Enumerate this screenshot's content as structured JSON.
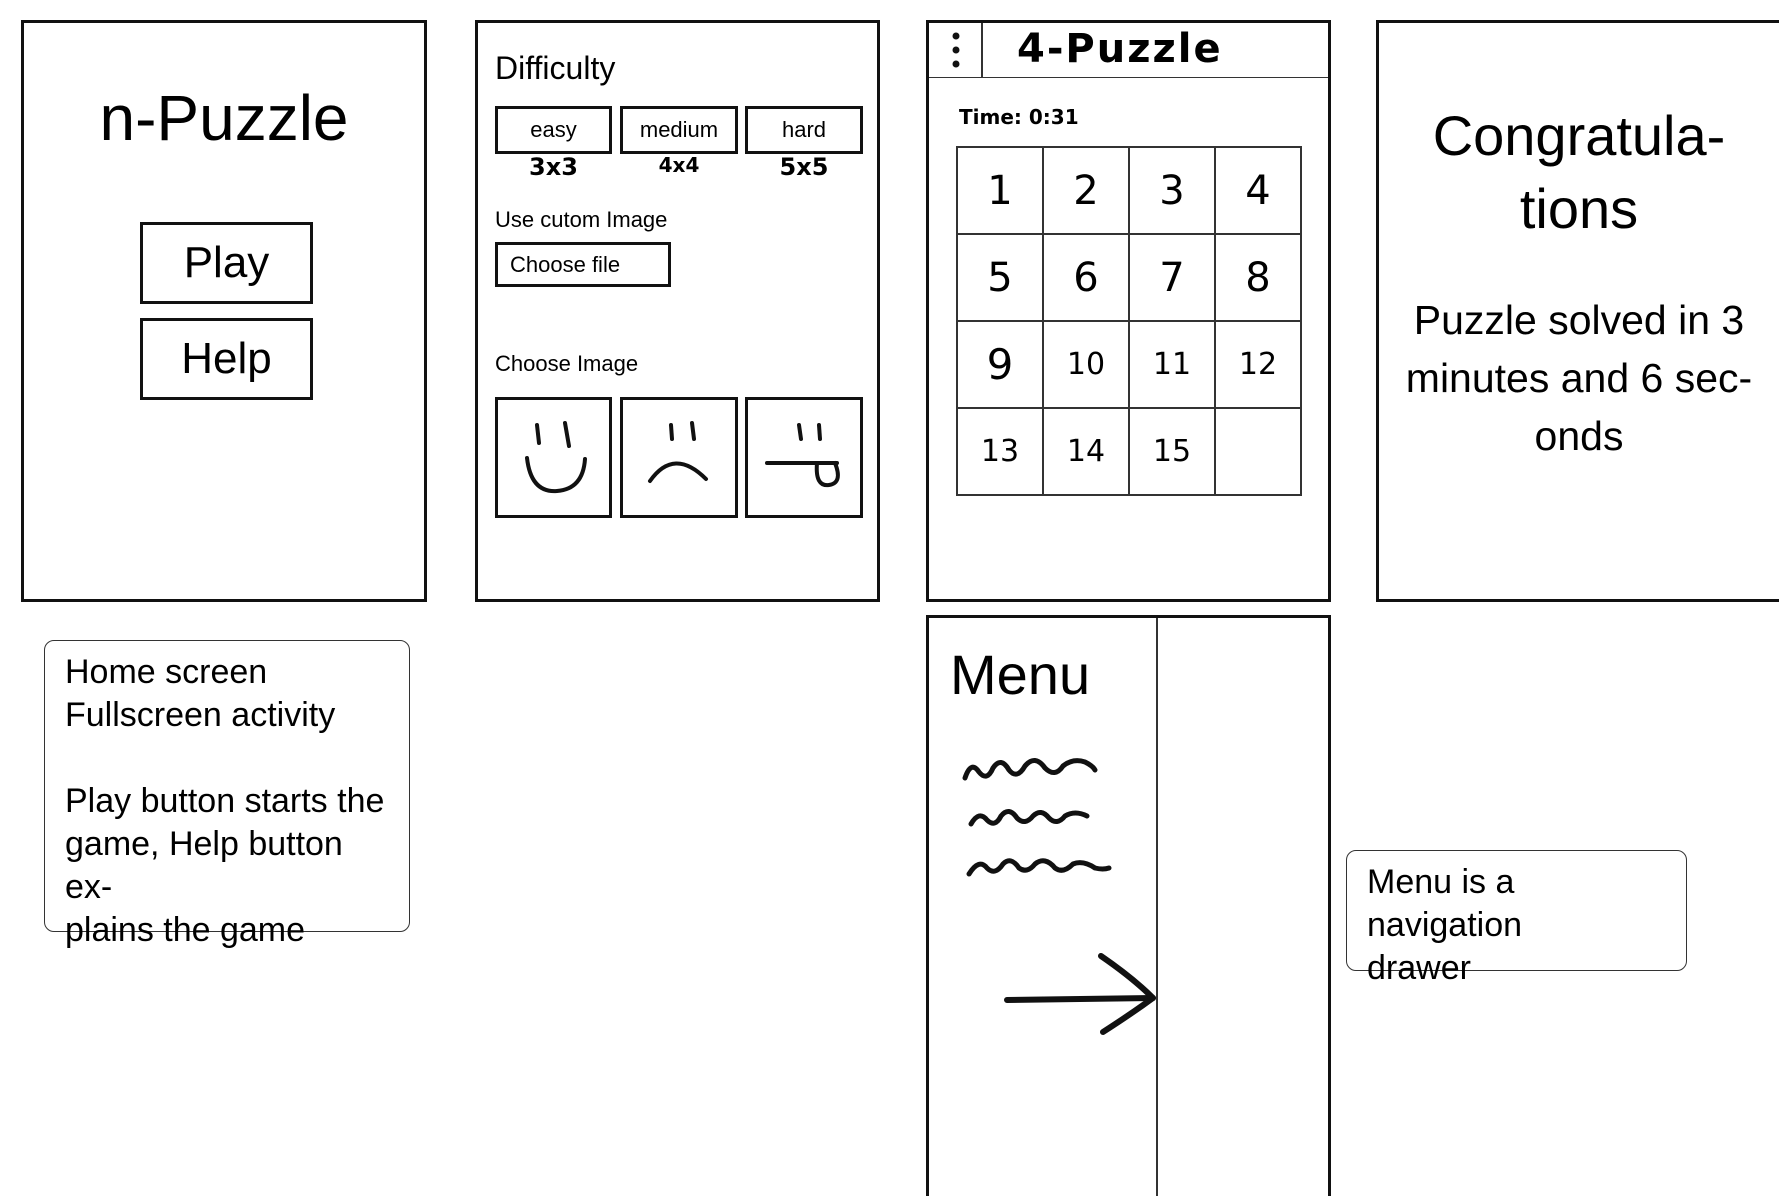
{
  "home": {
    "title": "n-Puzzle",
    "play_label": "Play",
    "help_label": "Help"
  },
  "home_note": {
    "line1": "Home screen",
    "line2": "Fullscreen activity",
    "line3": "Play button starts the",
    "line4": "game, Help button ex-",
    "line5": "plains the game"
  },
  "settings": {
    "difficulty_heading": "Difficulty",
    "difficulties": [
      {
        "label": "easy",
        "size": "3x3"
      },
      {
        "label": "medium",
        "size": "4x4"
      },
      {
        "label": "hard",
        "size": "5x5"
      }
    ],
    "custom_image_label": "Use cutom Image",
    "choose_file_label": "Choose file",
    "choose_image_label": "Choose Image",
    "image_options": [
      "smiley-face-icon",
      "sad-face-icon",
      "tongue-face-icon"
    ]
  },
  "game": {
    "menu_icon": "kebab-menu-icon",
    "title": "4-Puzzle",
    "time_text": "Time: 0:31",
    "tiles": [
      "1",
      "2",
      "3",
      "4",
      "5",
      "6",
      "7",
      "8",
      "9",
      "10",
      "11",
      "12",
      "13",
      "14",
      "15",
      ""
    ]
  },
  "menu": {
    "title": "Menu",
    "items": [
      "scribble-item-1",
      "scribble-item-2",
      "scribble-item-3"
    ],
    "arrow": "arrow-right-icon"
  },
  "menu_note": {
    "line1": "Menu is a navigation",
    "line2": "drawer"
  },
  "congrats": {
    "title_line1": "Congratula-",
    "title_line2": "tions",
    "msg_line1": "Puzzle solved in 3",
    "msg_line2": "minutes and 6 sec-",
    "msg_line3": "onds"
  }
}
